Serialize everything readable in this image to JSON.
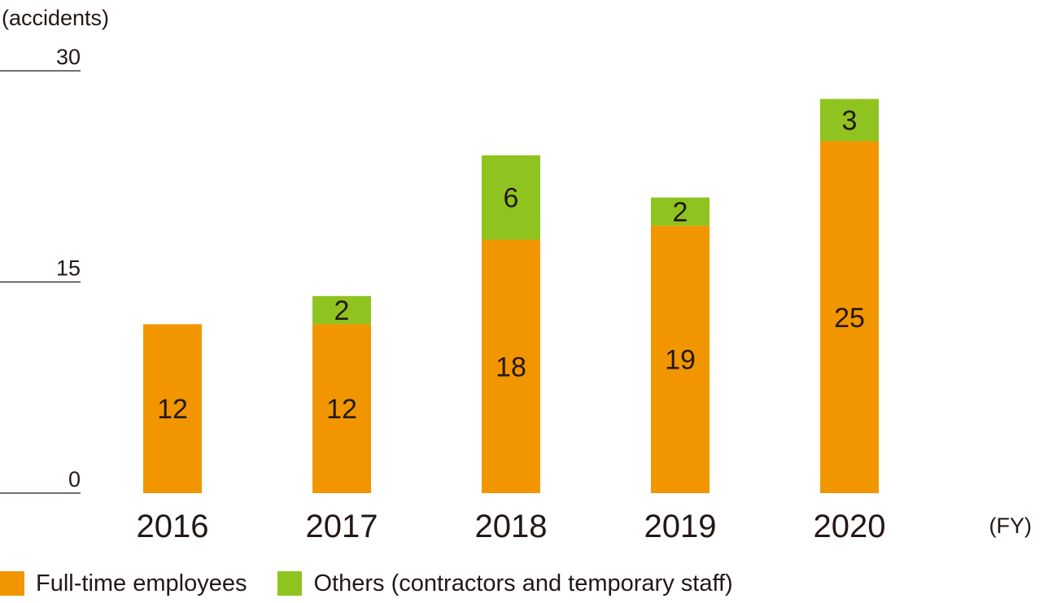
{
  "chart_data": {
    "type": "bar",
    "stacked": true,
    "title": "",
    "ylabel": "(accidents)",
    "xlabel": "(FY)",
    "categories": [
      "2016",
      "2017",
      "2018",
      "2019",
      "2020"
    ],
    "ylim": [
      0,
      30
    ],
    "yticks": [
      0,
      15,
      30
    ],
    "grid": false,
    "legend_position": "bottom",
    "series": [
      {
        "name": "Full-time employees",
        "color": "#F29600",
        "values": [
          12,
          12,
          18,
          19,
          25
        ],
        "labels": [
          "12",
          "12",
          "18",
          "19",
          "25"
        ]
      },
      {
        "name": "Others (contractors and temporary staff)",
        "color": "#8FC31F",
        "values": [
          0,
          2,
          6,
          2,
          3
        ],
        "labels": [
          "",
          "2",
          "6",
          "2",
          "3"
        ]
      }
    ]
  }
}
